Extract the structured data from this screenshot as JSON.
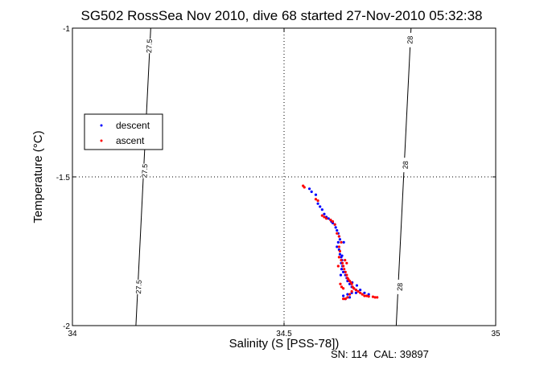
{
  "chart_data": {
    "type": "scatter",
    "title": "SG502 RossSea Nov 2010, dive 68 started 27-Nov-2010 05:32:38",
    "xlabel": "Salinity (S [PSS-78])",
    "ylabel": "Temperature (°C)",
    "xlim": [
      34,
      35
    ],
    "ylim": [
      -2,
      -1
    ],
    "xticks": [
      "34",
      "34.5",
      "35"
    ],
    "yticks": [
      "-2",
      "-1.5",
      "-1"
    ],
    "grid": "dotted at 34.5 and -1.5",
    "legend_position": "left",
    "footer": "SN: 114  CAL: 39897",
    "isopycnals": [
      {
        "label": "27.5",
        "points": [
          [
            34.185,
            -1
          ],
          [
            34.15,
            -2
          ]
        ],
        "label_positions": [
          [
            34.183,
            -1.06
          ],
          [
            34.172,
            -1.48
          ],
          [
            34.158,
            -1.87
          ]
        ]
      },
      {
        "label": "28",
        "points": [
          [
            34.8,
            -1
          ],
          [
            34.765,
            -2
          ]
        ],
        "label_positions": [
          [
            34.799,
            -1.04
          ],
          [
            34.788,
            -1.46
          ],
          [
            34.775,
            -1.87
          ]
        ]
      }
    ],
    "series": [
      {
        "name": "descent",
        "color": "#0000ff",
        "points": [
          [
            34.56,
            -1.54
          ],
          [
            34.565,
            -1.55
          ],
          [
            34.575,
            -1.56
          ],
          [
            34.58,
            -1.59
          ],
          [
            34.585,
            -1.6
          ],
          [
            34.59,
            -1.61
          ],
          [
            34.595,
            -1.625
          ],
          [
            34.6,
            -1.635
          ],
          [
            34.605,
            -1.64
          ],
          [
            34.61,
            -1.645
          ],
          [
            34.612,
            -1.65
          ],
          [
            34.615,
            -1.655
          ],
          [
            34.62,
            -1.66
          ],
          [
            34.622,
            -1.67
          ],
          [
            34.625,
            -1.68
          ],
          [
            34.628,
            -1.69
          ],
          [
            34.63,
            -1.7
          ],
          [
            34.632,
            -1.71
          ],
          [
            34.628,
            -1.72
          ],
          [
            34.625,
            -1.735
          ],
          [
            34.63,
            -1.745
          ],
          [
            34.632,
            -1.76
          ],
          [
            34.635,
            -1.77
          ],
          [
            34.637,
            -1.78
          ],
          [
            34.635,
            -1.79
          ],
          [
            34.638,
            -1.8
          ],
          [
            34.636,
            -1.81
          ],
          [
            34.64,
            -1.82
          ],
          [
            34.645,
            -1.83
          ],
          [
            34.648,
            -1.84
          ],
          [
            34.65,
            -1.85
          ],
          [
            34.655,
            -1.86
          ],
          [
            34.66,
            -1.87
          ],
          [
            34.665,
            -1.875
          ],
          [
            34.67,
            -1.88
          ],
          [
            34.66,
            -1.89
          ],
          [
            34.65,
            -1.895
          ],
          [
            34.64,
            -1.9
          ],
          [
            34.675,
            -1.885
          ],
          [
            34.68,
            -1.88
          ],
          [
            34.69,
            -1.89
          ],
          [
            34.7,
            -1.895
          ],
          [
            34.655,
            -1.905
          ],
          [
            34.645,
            -1.91
          ],
          [
            34.672,
            -1.865
          ],
          [
            34.637,
            -1.765
          ],
          [
            34.641,
            -1.72
          ],
          [
            34.634,
            -1.83
          ],
          [
            34.661,
            -1.855
          ],
          [
            34.67,
            -1.89
          ]
        ]
      },
      {
        "name": "ascent",
        "color": "#ff0000",
        "points": [
          [
            34.545,
            -1.53
          ],
          [
            34.548,
            -1.535
          ],
          [
            34.575,
            -1.575
          ],
          [
            34.58,
            -1.58
          ],
          [
            34.59,
            -1.63
          ],
          [
            34.595,
            -1.635
          ],
          [
            34.6,
            -1.64
          ],
          [
            34.61,
            -1.645
          ],
          [
            34.615,
            -1.65
          ],
          [
            34.62,
            -1.66
          ],
          [
            34.625,
            -1.69
          ],
          [
            34.63,
            -1.7
          ],
          [
            34.635,
            -1.72
          ],
          [
            34.63,
            -1.735
          ],
          [
            34.632,
            -1.75
          ],
          [
            34.635,
            -1.78
          ],
          [
            34.638,
            -1.79
          ],
          [
            34.64,
            -1.8
          ],
          [
            34.642,
            -1.81
          ],
          [
            34.645,
            -1.82
          ],
          [
            34.648,
            -1.83
          ],
          [
            34.65,
            -1.84
          ],
          [
            34.652,
            -1.845
          ],
          [
            34.655,
            -1.85
          ],
          [
            34.658,
            -1.855
          ],
          [
            34.66,
            -1.86
          ],
          [
            34.662,
            -1.87
          ],
          [
            34.665,
            -1.875
          ],
          [
            34.67,
            -1.88
          ],
          [
            34.675,
            -1.885
          ],
          [
            34.68,
            -1.89
          ],
          [
            34.685,
            -1.895
          ],
          [
            34.69,
            -1.9
          ],
          [
            34.695,
            -1.9
          ],
          [
            34.7,
            -1.902
          ],
          [
            34.71,
            -1.903
          ],
          [
            34.72,
            -1.905
          ],
          [
            34.715,
            -1.905
          ],
          [
            34.65,
            -1.905
          ],
          [
            34.645,
            -1.91
          ],
          [
            34.64,
            -1.91
          ],
          [
            34.655,
            -1.895
          ],
          [
            34.66,
            -1.885
          ],
          [
            34.633,
            -1.86
          ],
          [
            34.636,
            -1.87
          ],
          [
            34.64,
            -1.875
          ],
          [
            34.628,
            -1.8
          ],
          [
            34.63,
            -1.77
          ],
          [
            34.644,
            -1.78
          ],
          [
            34.648,
            -1.79
          ]
        ]
      }
    ]
  }
}
